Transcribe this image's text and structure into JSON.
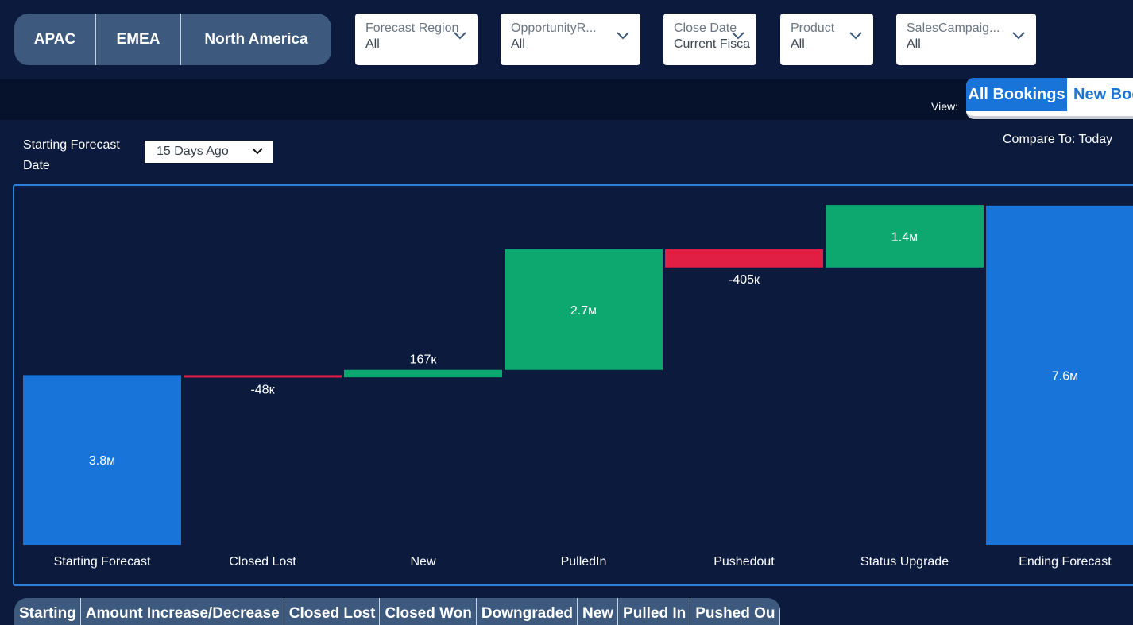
{
  "regions": [
    "APAC",
    "EMEA",
    "North America"
  ],
  "filters": [
    {
      "label": "Forecast Region",
      "value": "All"
    },
    {
      "label": "OpportunityR...",
      "value": "All"
    },
    {
      "label": "Close Date",
      "value": "Current Fisca"
    },
    {
      "label": "Product",
      "value": "All"
    },
    {
      "label": "SalesCampaig...",
      "value": "All"
    }
  ],
  "view": {
    "label": "View:",
    "tabs": [
      "All Bookings",
      "New Boo"
    ],
    "active": "All Bookings"
  },
  "starting_forecast_date": {
    "label": "Starting Forecast Date",
    "value": "15 Days Ago"
  },
  "compare_to": "Compare To: Today",
  "chart_data": {
    "type": "waterfall",
    "categories": [
      "Starting Forecast",
      "Closed Lost",
      "New",
      "PulledIn",
      "Pushedout",
      "Status Upgrade",
      "Ending Forecast"
    ],
    "values": [
      3800000,
      -48000,
      167000,
      2700000,
      -405000,
      1400000,
      7600000
    ],
    "labels": [
      "3.8м",
      "-48к",
      "167к",
      "2.7м",
      "-405к",
      "1.4м",
      "7.6м"
    ],
    "kinds": [
      "total",
      "delta",
      "delta",
      "delta",
      "delta",
      "delta",
      "total"
    ],
    "colors": {
      "total": "#1874d8",
      "increase": "#0ca870",
      "decrease": "#e11f45"
    },
    "ylim": [
      0,
      7900000
    ],
    "grid": false
  },
  "bottom_tabs": [
    "Starting",
    "Amount Increase/Decrease",
    "Closed Lost",
    "Closed Won",
    "Downgraded",
    "New",
    "Pulled In",
    "Pushed Ou"
  ]
}
